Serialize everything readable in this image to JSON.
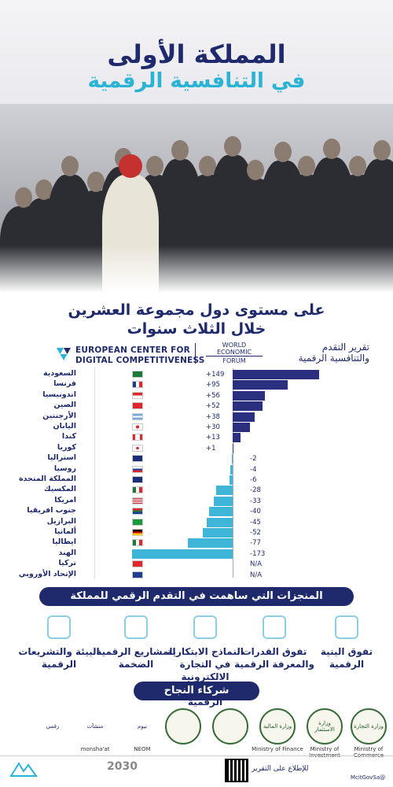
{
  "header": {
    "title_line1": "المملكة الأولى",
    "title_line2": "في التنافسية الرقمية"
  },
  "subtitle": {
    "line1": "على مستوى دول مجموعة العشرين",
    "line2": "خلال الثلاث سنوات"
  },
  "logos": {
    "ec_line1": "EUROPEAN CENTER FOR",
    "ec_line2": "DIGITAL COMPETITIVENESS",
    "wef_line1": "WORLD",
    "wef_line2": "ECONOMIC",
    "wef_line3": "FORUM",
    "report_line1": "تقرير التقدم",
    "report_line2": "والتنافسية الرقمية"
  },
  "chart_data": {
    "type": "bar",
    "orientation": "horizontal",
    "colors": {
      "positive": "#2a2f7e",
      "negative": "#3fb5d8"
    },
    "categories": [
      "السعودية",
      "فرنسا",
      "اندونيسيا",
      "الصين",
      "الأرجنتين",
      "اليابان",
      "كندا",
      "كوريا",
      "استراليا",
      "روسيا",
      "المملكة المتحدة",
      "المكسيك",
      "امريكا",
      "جنوب افريقيا",
      "البرازيل",
      "ألمانيا",
      "ايطاليا",
      "الهند",
      "تركيا",
      "الإتحاد الأوروبي"
    ],
    "values": [
      149,
      95,
      56,
      52,
      38,
      30,
      13,
      1,
      -2,
      -4,
      -6,
      -28,
      -33,
      -40,
      -45,
      -52,
      -77,
      -173,
      null,
      null
    ],
    "labels": [
      "+149",
      "+95",
      "+56",
      "+52",
      "+38",
      "+30",
      "+13",
      "+1",
      "-2",
      "-4",
      "-6",
      "-28",
      "-33",
      "-40",
      "-45",
      "-52",
      "-77",
      "-173",
      "N/A",
      "N/A"
    ],
    "flags": [
      "sa",
      "fr",
      "id",
      "cn",
      "ar",
      "jp",
      "ca",
      "kr",
      "au",
      "ru",
      "gb",
      "mx",
      "us",
      "za",
      "br",
      "de",
      "it",
      "in",
      "tr",
      "eu"
    ]
  },
  "achievements": {
    "heading": "المنجزات التي ساهمت في التقدم الرقمي للمملكة",
    "items": [
      {
        "label": "تفوق البنية الرقمية",
        "icon": "infrastructure-icon"
      },
      {
        "label": "تفوق القدرات والمعرفة الرقمية",
        "icon": "skills-icon"
      },
      {
        "label": "النماذج الابتكارية في التجارة الالكترونية والمدفوعات الرقمية",
        "icon": "ecommerce-icon"
      },
      {
        "label": "المشاريع الرقمية الضخمة",
        "icon": "projects-icon"
      },
      {
        "label": "البيئة والتشريعات الرقمية",
        "icon": "regulation-icon"
      }
    ]
  },
  "partners": {
    "heading": "شركاء النجاح",
    "items": [
      {
        "label": "وزارة التجارة",
        "sub": "Ministry of Commerce"
      },
      {
        "label": "وزارة الاستثمار",
        "sub": "Ministry of Investment"
      },
      {
        "label": "وزارة المالية",
        "sub": "Ministry of Finance"
      },
      {
        "label": "",
        "sub": ""
      },
      {
        "label": "",
        "sub": ""
      },
      {
        "label": "نيوم",
        "sub": "NEOM"
      },
      {
        "label": "منشآت",
        "sub": "monsha'at"
      },
      {
        "label": "رقمي",
        "sub": ""
      }
    ]
  },
  "footer": {
    "read_report": "للإطلاع على التقرير",
    "handle": "@McitGovSa",
    "vision": "2030"
  }
}
